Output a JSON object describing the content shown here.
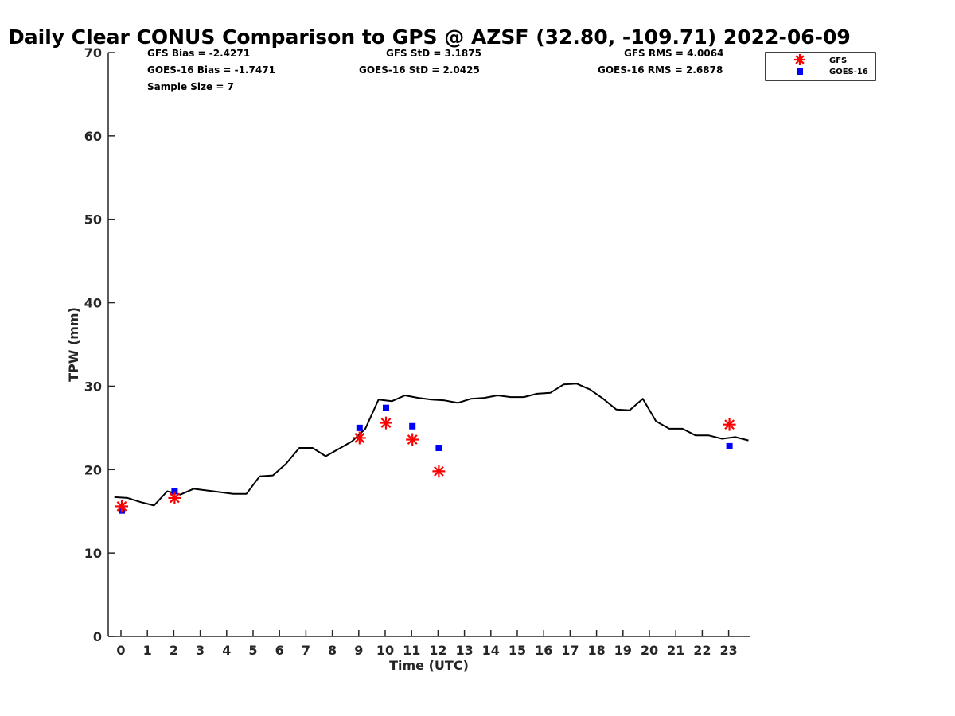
{
  "chart_data": {
    "type": "line",
    "title": "Daily Clear CONUS Comparison to GPS @ AZSF (32.80, -109.71) 2022-06-09",
    "xlabel": "Time (UTC)",
    "ylabel": "TPW (mm)",
    "xlim": [
      -0.5,
      23.8
    ],
    "ylim": [
      0,
      70
    ],
    "x_ticks": [
      "0",
      "1",
      "2",
      "3",
      "4",
      "5",
      "6",
      "7",
      "8",
      "9",
      "10",
      "11",
      "12",
      "13",
      "14",
      "15",
      "16",
      "17",
      "18",
      "19",
      "20",
      "21",
      "22",
      "23"
    ],
    "y_ticks": [
      "0",
      "10",
      "20",
      "30",
      "40",
      "50",
      "60",
      "70"
    ],
    "grid": false,
    "legend_position": "top-right",
    "stats": {
      "gfs_bias": "GFS Bias = -2.4271",
      "goes_bias": "GOES-16 Bias = -1.7471",
      "sample_size": "Sample Size = 7",
      "gfs_std": "GFS StD = 3.1875",
      "goes_std": "GOES-16 StD = 2.0425",
      "gfs_rms": "GFS RMS = 4.0064",
      "goes_rms": "GOES-16 RMS = 2.6878"
    },
    "gps_line": {
      "color": "#000000",
      "x": [
        -0.25,
        0.25,
        0.75,
        1.25,
        1.75,
        2.25,
        2.75,
        3.25,
        3.75,
        4.25,
        4.75,
        5.25,
        5.75,
        6.25,
        6.75,
        7.25,
        7.75,
        8.25,
        8.75,
        9.25,
        9.75,
        10.25,
        10.75,
        11.25,
        11.75,
        12.25,
        12.75,
        13.25,
        13.75,
        14.25,
        14.75,
        15.25,
        15.75,
        16.25,
        16.75,
        17.25,
        17.75,
        18.25,
        18.75,
        19.25,
        19.75,
        20.25,
        20.75,
        21.25,
        21.75,
        22.25,
        22.75,
        23.25,
        23.75
      ],
      "y": [
        16.7,
        16.6,
        16.1,
        15.7,
        17.4,
        17.0,
        17.7,
        17.5,
        17.3,
        17.1,
        17.1,
        19.2,
        19.3,
        20.7,
        22.6,
        22.6,
        21.6,
        22.5,
        23.4,
        24.9,
        28.4,
        28.2,
        28.9,
        28.6,
        28.4,
        28.3,
        28.0,
        28.5,
        28.6,
        28.9,
        28.7,
        28.7,
        29.1,
        29.2,
        30.2,
        30.3,
        29.6,
        28.5,
        27.2,
        27.1,
        28.5,
        25.8,
        24.9,
        24.9,
        24.1,
        24.1,
        23.7,
        23.9,
        23.5
      ]
    },
    "series": [
      {
        "name": "GFS",
        "marker": "asterisk",
        "color": "#ff0000",
        "x": [
          0,
          2,
          9,
          10,
          11,
          12,
          23
        ],
        "values": [
          15.6,
          16.6,
          23.8,
          25.6,
          23.6,
          19.8,
          25.4
        ]
      },
      {
        "name": "GOES-16",
        "marker": "square",
        "color": "#0000ff",
        "x": [
          0,
          2,
          9,
          10,
          11,
          12,
          23
        ],
        "values": [
          15.1,
          17.4,
          25.0,
          27.4,
          25.2,
          22.6,
          22.8
        ]
      }
    ]
  }
}
